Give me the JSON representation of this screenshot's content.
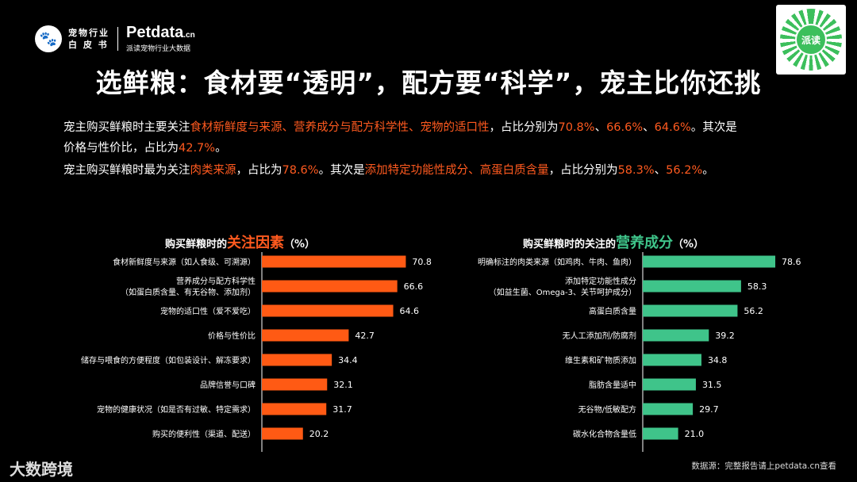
{
  "header": {
    "logo_icon": "pet-logo-icon",
    "logo_text_line1": "宠物行业",
    "logo_text_line2": "白 皮 书",
    "brand_name": "Petdata",
    "brand_tld": ".cn",
    "brand_sub": "派读宠物行业大数据",
    "qr_badge": "派读"
  },
  "title": "选鲜粮：食材要“透明”，配方要“科学”，宠主比你还挑",
  "para1": {
    "a": "宠主购买鲜粮时主要关注",
    "b": "食材新鲜度与来源、营养成分与配方科学性、宠物的适口性",
    "c": "，占比分别为",
    "d": "70.8%",
    "e": "、",
    "f": "66.6%",
    "g": "、",
    "h": "64.6%",
    "i": "。其次是",
    "j": "价格与性价比，占比为",
    "k": "42.7%",
    "l": "。"
  },
  "para2": {
    "a": "宠主购买鲜粮时最为关注",
    "b": "肉类来源",
    "c": "，占比为",
    "d": "78.6%",
    "e": "。其次是",
    "f": "添加特定功能性成分、高蛋白质含量",
    "g": "，占比分别为",
    "h": "58.3%",
    "i": "、",
    "j": "56.2%",
    "k": "。"
  },
  "chart_data": [
    {
      "type": "bar",
      "orientation": "horizontal",
      "title_prefix": "购买鲜粮时的",
      "title_emphasis": "关注因素",
      "title_suffix": "（%）",
      "color": "#ff5a14",
      "categories": [
        [
          "食材新鲜度与来源（如人食级、可溯源）"
        ],
        [
          "营养成分与配方科学性",
          "（如蛋白质含量、有无谷物、添加剂）"
        ],
        [
          "宠物的适口性（爱不爱吃）"
        ],
        [
          "价格与性价比"
        ],
        [
          "储存与喂食的方便程度（如包装设计、解冻要求）"
        ],
        [
          "品牌信誉与口碑"
        ],
        [
          "宠物的健康状况（如是否有过敏、特定需求）"
        ],
        [
          "购买的便利性（渠道、配送）"
        ]
      ],
      "values": [
        70.8,
        66.6,
        64.6,
        42.7,
        34.4,
        32.1,
        31.7,
        20.2
      ],
      "value_labels": [
        "70.8",
        "66.6",
        "64.6",
        "42.7",
        "34.4",
        "32.1",
        "31.7",
        "20.2"
      ],
      "xlim": [
        0,
        80
      ]
    },
    {
      "type": "bar",
      "orientation": "horizontal",
      "title_prefix": "购买鲜粮时的关注的",
      "title_emphasis": "营养成分",
      "title_suffix": "（%）",
      "color": "#3fc48a",
      "categories": [
        [
          "明确标注的肉类来源（如鸡肉、牛肉、鱼肉）"
        ],
        [
          "添加特定功能性成分",
          "（如益生菌、Omega-3、关节呵护成分）"
        ],
        [
          "高蛋白质含量"
        ],
        [
          "无人工添加剂/防腐剂"
        ],
        [
          "维生素和矿物质添加"
        ],
        [
          "脂肪含量适中"
        ],
        [
          "无谷物/低敏配方"
        ],
        [
          "碳水化合物含量低"
        ]
      ],
      "values": [
        78.6,
        58.3,
        56.2,
        39.2,
        34.8,
        31.5,
        29.7,
        21.0
      ],
      "value_labels": [
        "78.6",
        "58.3",
        "56.2",
        "39.2",
        "34.8",
        "31.5",
        "29.7",
        "21.0"
      ],
      "xlim": [
        0,
        80
      ]
    }
  ],
  "footer": {
    "logo": "大数跨境",
    "source": "数据源：完整报告请上petdata.cn查看"
  }
}
